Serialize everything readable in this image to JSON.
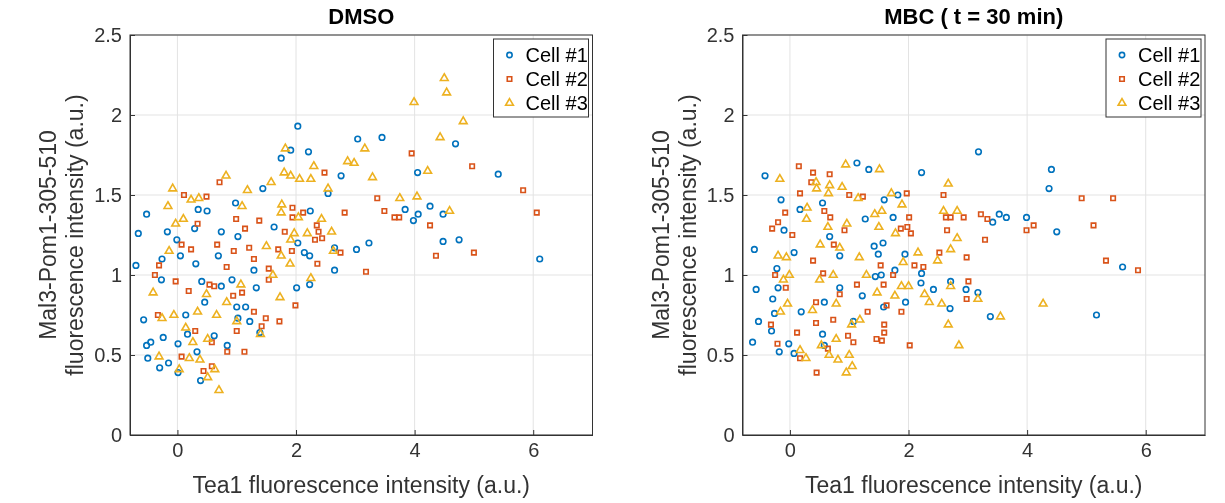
{
  "chart_data": [
    {
      "type": "scatter",
      "title": "DMSO",
      "xlabel": "Tea1 fluorescence intensity (a.u.)",
      "ylabel": "Mal3-Pom1-305-510\nfluorescence intensity (a.u.)",
      "xlim": [
        -0.8,
        7
      ],
      "ylim": [
        0,
        2.5
      ],
      "xticks": [
        0,
        2,
        4,
        6
      ],
      "yticks": [
        0,
        0.5,
        1,
        1.5,
        2,
        2.5
      ],
      "grid": true,
      "legend": "top right",
      "series": [
        {
          "name": "Cell #1",
          "color": "#0072bd",
          "marker": "circle",
          "x": [
            2.03,
            3.04,
            3.45,
            4.69,
            1.91,
            2.21,
            1.75,
            2.76,
            4.05,
            5.41,
            1.44,
            2.54,
            0.98,
            0.35,
            0.5,
            2.24,
            3.84,
            4.26,
            4.06,
            3.98,
            4.48,
            -0.52,
            -0.66,
            -0.17,
            -0.01,
            0.29,
            0.74,
            1.02,
            1.63,
            2.03,
            2.65,
            3.02,
            3.23,
            4.48,
            4.75,
            6.11,
            2.14,
            2.23,
            2.65,
            -0.7,
            -0.26,
            0.05,
            0.31,
            0.69,
            -0.27,
            0.41,
            0.74,
            0.92,
            1.29,
            1.33,
            2.01,
            2.23,
            1.15,
            1.02,
            1.22,
            1.39,
            0.62,
            -0.57,
            -0.24,
            -0.52,
            -0.45,
            -0.5,
            -0.3,
            -0.15,
            0.01,
            0.39,
            0.01,
            0.17,
            0.84,
            0.33,
            0.46,
            0.14,
            1.0
          ],
          "values": [
            1.93,
            1.85,
            1.86,
            1.82,
            1.78,
            1.77,
            1.73,
            1.62,
            1.64,
            1.63,
            1.54,
            1.51,
            1.45,
            1.41,
            1.4,
            1.4,
            1.41,
            1.43,
            1.38,
            1.34,
            1.38,
            1.38,
            1.26,
            1.27,
            1.22,
            1.29,
            1.27,
            1.24,
            1.3,
            1.2,
            1.17,
            1.16,
            1.2,
            1.21,
            1.22,
            1.1,
            1.14,
            1.12,
            1.03,
            1.06,
            1.1,
            1.12,
            1.07,
            1.12,
            0.97,
            0.96,
            0.93,
            0.97,
            1.03,
            0.92,
            0.92,
            0.94,
            0.8,
            0.73,
            0.71,
            0.64,
            0.62,
            0.72,
            0.61,
            0.56,
            0.58,
            0.48,
            0.42,
            0.45,
            0.39,
            0.34,
            0.57,
            0.63,
            0.56,
            0.52,
            0.83,
            0.75,
            0.8
          ]
        },
        {
          "name": "Cell #2",
          "color": "#d95319",
          "marker": "square",
          "x": [
            3.95,
            4.97,
            2.48,
            0.71,
            5.83,
            0.11,
            0.49,
            3.37,
            3.49,
            2.82,
            1.94,
            2.12,
            6.06,
            3.66,
            3.74,
            1.94,
            0.99,
            1.38,
            0.34,
            1.14,
            1.81,
            2.35,
            2.38,
            2.44,
            2.32,
            4.26,
            0.67,
            0.07,
            0.23,
            0.95,
            1.21,
            1.7,
            1.93,
            2.75,
            4.36,
            5.0,
            1.29,
            2.36,
            3.18,
            -0.31,
            -0.38,
            0.83,
            1.54,
            -0.03,
            0.54,
            0.62,
            1.54,
            1.09,
            0.94,
            1.99,
            1.29,
            1.49,
            1.72,
            -0.33,
            0.3,
            1.0,
            1.42,
            0.58,
            0.84,
            1.13,
            0.07,
            0.44,
            0.58,
            0.19
          ],
          "values": [
            1.76,
            1.68,
            1.64,
            1.58,
            1.53,
            1.5,
            1.49,
            1.48,
            1.4,
            1.39,
            1.42,
            1.39,
            1.39,
            1.36,
            1.36,
            1.36,
            1.35,
            1.34,
            1.32,
            1.29,
            1.27,
            1.31,
            1.27,
            1.23,
            1.22,
            1.31,
            1.19,
            1.19,
            1.16,
            1.15,
            1.17,
            1.16,
            1.15,
            1.14,
            1.12,
            1.14,
            1.1,
            1.07,
            1.02,
            1.06,
            1.0,
            1.05,
            1.04,
            0.96,
            0.94,
            0.93,
            0.97,
            0.89,
            0.87,
            0.81,
            0.77,
            0.73,
            0.71,
            0.75,
            0.65,
            0.65,
            0.68,
            0.58,
            0.52,
            0.52,
            0.49,
            0.4,
            0.43,
            0.9
          ]
        },
        {
          "name": "Cell #3",
          "color": "#edb120",
          "marker": "triangle",
          "x": [
            4.5,
            4.54,
            3.99,
            4.82,
            4.43,
            1.82,
            3.16,
            2.87,
            2.98,
            2.3,
            4.22,
            0.82,
            1.8,
            1.91,
            2.06,
            2.25,
            3.29,
            1.58,
            2.54,
            1.18,
            -0.08,
            0.23,
            0.36,
            -0.16,
            1.09,
            1.76,
            3.75,
            4.04,
            4.59,
            1.75,
            2.04,
            2.43,
            0.1,
            -0.03,
            2.6,
            1.97,
            2.19,
            1.91,
            2.63,
            1.5,
            1.75,
            1.9,
            1.61,
            2.25,
            1.07,
            1.73,
            -0.14,
            -0.41,
            -0.06,
            -0.26,
            0.34,
            0.66,
            1.0,
            1.4,
            0.51,
            0.26,
            0.14,
            -0.31,
            0.2,
            0.38,
            0.03,
            0.63,
            0.51,
            0.7,
            0.49,
            0.83
          ],
          "values": [
            2.23,
            2.14,
            2.08,
            1.96,
            1.86,
            1.79,
            1.79,
            1.71,
            1.7,
            1.68,
            1.65,
            1.62,
            1.64,
            1.62,
            1.6,
            1.6,
            1.61,
            1.58,
            1.54,
            1.53,
            1.54,
            1.47,
            1.48,
            1.43,
            1.43,
            1.44,
            1.48,
            1.49,
            1.4,
            1.39,
            1.36,
            1.35,
            1.35,
            1.32,
            1.27,
            1.26,
            1.26,
            1.22,
            1.15,
            1.18,
            1.12,
            1.07,
            1.0,
            0.98,
            0.94,
            0.86,
            1.15,
            0.89,
            0.75,
            0.73,
            0.77,
            0.75,
            0.71,
            0.63,
            0.6,
            0.58,
            0.67,
            0.49,
            0.48,
            0.47,
            0.41,
            0.41,
            0.36,
            0.28,
            0.88,
            0.83
          ]
        }
      ]
    },
    {
      "type": "scatter",
      "title": "MBC ( t = 30 min)",
      "xlabel": "Tea1 fluorescence intensity (a.u.)",
      "ylabel": "Mal3-Pom1-305-510\nfluorescence intensity (a.u.)",
      "xlim": [
        -0.8,
        7
      ],
      "ylim": [
        0,
        2.5
      ],
      "xticks": [
        0,
        2,
        4,
        6
      ],
      "yticks": [
        0,
        0.5,
        1,
        1.5,
        2,
        2.5
      ],
      "grid": true,
      "legend": "top right",
      "series": [
        {
          "name": "Cell #1",
          "color": "#0072bd",
          "marker": "circle",
          "x": [
            3.18,
            1.13,
            1.33,
            -0.42,
            2.22,
            4.41,
            4.37,
            -0.15,
            0.55,
            1.59,
            1.82,
            0.17,
            3.53,
            3.65,
            3.42,
            3.99,
            4.5,
            -0.1,
            0.67,
            1.27,
            1.57,
            1.74,
            -0.6,
            0.07,
            0.84,
            1.42,
            1.49,
            1.94,
            1.77,
            2.22,
            5.61,
            -0.22,
            -0.57,
            -0.2,
            -0.29,
            -0.26,
            -0.53,
            -0.31,
            -0.63,
            -0.18,
            -0.02,
            0.07,
            0.19,
            0.58,
            0.84,
            1.22,
            1.44,
            1.54,
            1.95,
            2.21,
            2.42,
            2.71,
            2.7,
            2.97,
            3.17,
            3.38,
            5.17,
            1.58,
            0.55,
            0.58,
            1.07
          ],
          "values": [
            1.77,
            1.7,
            1.66,
            1.62,
            1.64,
            1.66,
            1.54,
            1.47,
            1.45,
            1.47,
            1.5,
            1.41,
            1.38,
            1.36,
            1.33,
            1.36,
            1.27,
            1.28,
            1.24,
            1.35,
            1.2,
            1.36,
            1.16,
            1.14,
            1.12,
            1.18,
            1.13,
            1.13,
            1.03,
            1.01,
            1.05,
            1.04,
            0.91,
            0.92,
            0.85,
            0.76,
            0.71,
            0.65,
            0.58,
            0.52,
            0.57,
            0.51,
            0.77,
            0.83,
            0.92,
            0.87,
            0.99,
            1.0,
            0.83,
            0.95,
            0.91,
            0.96,
            0.79,
            0.91,
            0.89,
            0.74,
            0.75,
            0.8,
            0.63,
            0.56,
            0.71
          ]
        },
        {
          "name": "Cell #2",
          "color": "#d95319",
          "marker": "square",
          "x": [
            0.15,
            0.39,
            0.67,
            0.36,
            0.17,
            1.0,
            1.23,
            1.97,
            2.59,
            4.92,
            5.45,
            -0.08,
            0.58,
            -0.2,
            0.68,
            -0.3,
            0.04,
            2.63,
            2.71,
            2.93,
            3.22,
            3.33,
            2.01,
            1.98,
            2.04,
            2.65,
            3.29,
            3.99,
            4.11,
            5.12,
            5.33,
            5.87,
            1.87,
            0.92,
            0.74,
            2.52,
            2.98,
            2.1,
            2.25,
            3.01,
            2.98,
            -0.25,
            -0.07,
            0.39,
            0.56,
            0.44,
            0.84,
            1.13,
            1.53,
            1.74,
            1.58,
            1.63,
            1.31,
            1.88,
            -0.32,
            0.12,
            -0.21,
            1.59,
            1.59,
            1.46,
            1.55,
            1.07,
            0.98,
            2.02,
            0.17,
            0.45,
            0.64,
            0.44,
            0.73
          ],
          "values": [
            1.68,
            1.64,
            1.63,
            1.58,
            1.51,
            1.5,
            1.49,
            1.51,
            1.5,
            1.48,
            1.48,
            1.39,
            1.4,
            1.33,
            1.36,
            1.29,
            1.25,
            1.36,
            1.36,
            1.36,
            1.38,
            1.35,
            1.36,
            1.3,
            1.26,
            1.28,
            1.22,
            1.28,
            1.31,
            1.31,
            1.09,
            1.03,
            1.29,
            1.28,
            1.19,
            1.14,
            1.11,
            1.06,
            1.05,
            0.96,
            0.85,
            1.0,
            0.92,
            1.09,
            1.01,
            0.83,
            0.88,
            0.94,
            1.06,
            1.0,
            0.94,
            0.81,
            0.77,
            0.77,
            0.69,
            0.64,
            0.57,
            0.69,
            0.64,
            0.6,
            0.59,
            0.58,
            0.62,
            0.56,
            0.48,
            0.39,
            0.54,
            0.7,
            0.72
          ]
        },
        {
          "name": "Cell #3",
          "color": "#edb120",
          "marker": "triangle",
          "x": [
            0.94,
            1.51,
            -0.17,
            0.44,
            0.67,
            0.45,
            0.88,
            0.65,
            2.67,
            1.71,
            1.89,
            1.15,
            0.29,
            2.59,
            2.82,
            1.55,
            1.43,
            0.28,
            0.64,
            0.96,
            1.5,
            1.78,
            2.82,
            2.71,
            2.16,
            2.49,
            1.91,
            -0.2,
            -0.06,
            0.51,
            0.84,
            1.17,
            -0.11,
            -0.01,
            0.5,
            0.73,
            1.29,
            1.47,
            1.77,
            1.88,
            2.0,
            2.27,
            2.35,
            2.56,
            2.71,
            3.17,
            4.27,
            3.55,
            2.67,
            2.85,
            -0.16,
            -0.04,
            0.38,
            0.78,
            1.04,
            1.18,
            0.78,
            0.27,
            0.17,
            0.66,
            0.81,
            1.0,
            1.05,
            0.95,
            0.53
          ],
          "values": [
            1.69,
            1.66,
            1.6,
            1.58,
            1.56,
            1.54,
            1.55,
            1.51,
            1.57,
            1.51,
            1.44,
            1.48,
            1.42,
            1.4,
            1.4,
            1.4,
            1.38,
            1.35,
            1.3,
            1.32,
            1.3,
            1.26,
            1.23,
            1.16,
            1.14,
            1.09,
            1.08,
            1.12,
            1.11,
            1.19,
            1.17,
            1.11,
            0.97,
            1.0,
            0.97,
            1.0,
            1.0,
            0.89,
            0.87,
            0.93,
            0.93,
            0.88,
            0.83,
            0.82,
            0.93,
            0.85,
            0.82,
            0.74,
            0.69,
            0.56,
            0.77,
            0.82,
            0.78,
            0.82,
            0.69,
            0.72,
            0.6,
            0.48,
            0.53,
            0.5,
            0.47,
            0.5,
            0.43,
            0.39,
            0.56
          ]
        }
      ]
    }
  ]
}
